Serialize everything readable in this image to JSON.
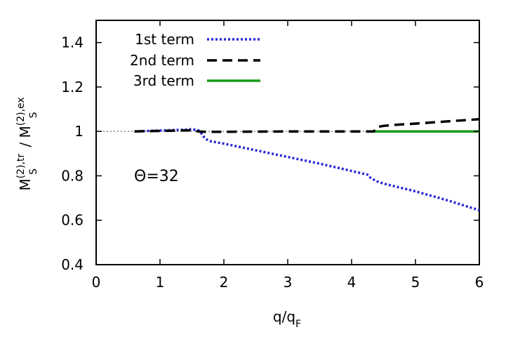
{
  "chart_data": {
    "type": "line",
    "xlim": [
      0,
      6
    ],
    "ylim": [
      0.4,
      1.5
    ],
    "xticks": [
      0,
      1,
      2,
      3,
      4,
      5,
      6
    ],
    "xtick_labels": [
      "0",
      "1",
      "2",
      "3",
      "4",
      "5",
      "6"
    ],
    "yticks": [
      0.4,
      0.6,
      0.8,
      1.0,
      1.2,
      1.4
    ],
    "ytick_labels": [
      "0.4",
      "0.6",
      "0.8",
      "1",
      "1.2",
      "1.4"
    ],
    "grid": false,
    "legend_position": "top-left",
    "annotation": "Θ=32",
    "reference_line": {
      "y": 1.0,
      "color": "#888888",
      "style": "dotted"
    },
    "series": [
      {
        "name": "1st term",
        "color": "#2828d8",
        "style": "dotted",
        "x": [
          0.6,
          0.8,
          1.0,
          1.2,
          1.4,
          1.5,
          1.6,
          1.65,
          1.7,
          1.75,
          1.8,
          2.0,
          2.5,
          3.0,
          3.5,
          4.0,
          4.25,
          4.3,
          4.4,
          4.5,
          5.0,
          5.5,
          6.0
        ],
        "y": [
          1.0,
          1.002,
          1.004,
          1.006,
          1.008,
          1.01,
          1.005,
          0.99,
          0.97,
          0.96,
          0.955,
          0.945,
          0.915,
          0.885,
          0.855,
          0.822,
          0.805,
          0.79,
          0.775,
          0.765,
          0.73,
          0.69,
          0.645
        ]
      },
      {
        "name": "2nd term",
        "color": "#000000",
        "style": "dashed",
        "x": [
          0.6,
          1.0,
          1.5,
          1.6,
          1.7,
          2.0,
          3.0,
          4.0,
          4.35,
          4.4,
          4.5,
          4.7,
          5.0,
          5.5,
          6.0
        ],
        "y": [
          1.0,
          1.002,
          1.005,
          1.0,
          0.998,
          0.998,
          1.0,
          1.0,
          1.0,
          1.02,
          1.025,
          1.03,
          1.035,
          1.045,
          1.055
        ]
      },
      {
        "name": "3rd term",
        "color": "#1a9a1a",
        "style": "solid",
        "x": [
          4.35,
          5.0,
          5.5,
          6.0
        ],
        "y": [
          1.0,
          1.0,
          1.0,
          1.0
        ]
      }
    ],
    "xlabel": {
      "main": "q/q",
      "sub": "F"
    },
    "ylabel": {
      "a_main": "M",
      "a_sup": "(2),tr",
      "a_sub": "S",
      "sep": " / ",
      "b_main": "M",
      "b_sup": "(2),ex",
      "b_sub": "S"
    }
  }
}
